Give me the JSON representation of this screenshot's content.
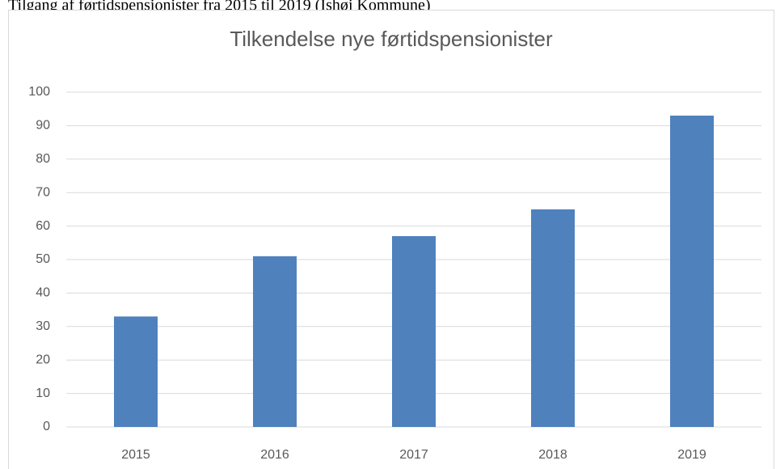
{
  "caption": "Tilgang af førtidspensionister fra 2015 til 2019 (Ishøj Kommune)",
  "chart_data": {
    "type": "bar",
    "title": "Tilkendelse nye førtidspensionister",
    "categories": [
      "2015",
      "2016",
      "2017",
      "2018",
      "2019"
    ],
    "values": [
      33,
      51,
      57,
      65,
      93
    ],
    "color": "#4f81bd",
    "ylim": [
      0,
      100
    ],
    "yticks": [
      0,
      10,
      20,
      30,
      40,
      50,
      60,
      70,
      80,
      90,
      100
    ],
    "grid": true
  }
}
